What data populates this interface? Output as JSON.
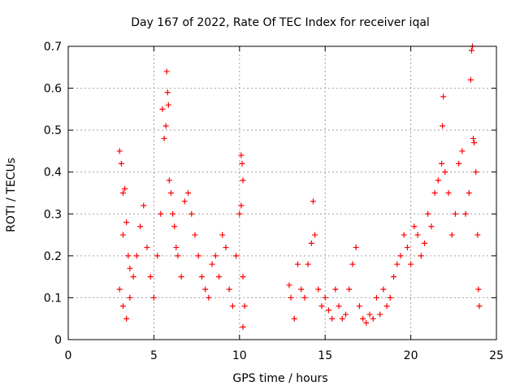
{
  "chart_data": {
    "type": "scatter",
    "title": "Day 167 of 2022, Rate Of TEC Index for receiver iqal",
    "xlabel": "GPS time / hours",
    "ylabel": "ROTI / TECUs",
    "xlim": [
      0,
      25
    ],
    "ylim": [
      0,
      0.7
    ],
    "xticks": [
      "0",
      "5",
      "10",
      "15",
      "20",
      "25"
    ],
    "yticks": [
      "0",
      "0.1",
      "0.2",
      "0.3",
      "0.4",
      "0.5",
      "0.6",
      "0.7"
    ],
    "grid": true,
    "marker": "+",
    "series": [
      {
        "color": "#ff0000",
        "points": [
          [
            3.0,
            0.45
          ],
          [
            3.1,
            0.42
          ],
          [
            3.2,
            0.35
          ],
          [
            3.3,
            0.36
          ],
          [
            3.2,
            0.25
          ],
          [
            3.4,
            0.28
          ],
          [
            3.5,
            0.2
          ],
          [
            3.6,
            0.17
          ],
          [
            3.0,
            0.12
          ],
          [
            3.2,
            0.08
          ],
          [
            3.4,
            0.05
          ],
          [
            3.6,
            0.1
          ],
          [
            3.8,
            0.15
          ],
          [
            4.0,
            0.2
          ],
          [
            4.2,
            0.27
          ],
          [
            4.4,
            0.32
          ],
          [
            4.6,
            0.22
          ],
          [
            4.8,
            0.15
          ],
          [
            5.0,
            0.1
          ],
          [
            5.2,
            0.2
          ],
          [
            5.4,
            0.3
          ],
          [
            5.5,
            0.55
          ],
          [
            5.6,
            0.48
          ],
          [
            5.7,
            0.51
          ],
          [
            5.75,
            0.64
          ],
          [
            5.8,
            0.59
          ],
          [
            5.85,
            0.56
          ],
          [
            5.9,
            0.38
          ],
          [
            6.0,
            0.35
          ],
          [
            6.1,
            0.3
          ],
          [
            6.2,
            0.27
          ],
          [
            6.3,
            0.22
          ],
          [
            6.4,
            0.2
          ],
          [
            6.6,
            0.15
          ],
          [
            6.8,
            0.33
          ],
          [
            7.0,
            0.35
          ],
          [
            7.2,
            0.3
          ],
          [
            7.4,
            0.25
          ],
          [
            7.6,
            0.2
          ],
          [
            7.8,
            0.15
          ],
          [
            8.0,
            0.12
          ],
          [
            8.2,
            0.1
          ],
          [
            8.4,
            0.18
          ],
          [
            8.6,
            0.2
          ],
          [
            8.8,
            0.15
          ],
          [
            9.0,
            0.25
          ],
          [
            9.2,
            0.22
          ],
          [
            9.4,
            0.12
          ],
          [
            9.6,
            0.08
          ],
          [
            9.8,
            0.2
          ],
          [
            10.0,
            0.3
          ],
          [
            10.1,
            0.44
          ],
          [
            10.15,
            0.42
          ],
          [
            10.2,
            0.38
          ],
          [
            10.1,
            0.32
          ],
          [
            10.2,
            0.15
          ],
          [
            10.3,
            0.08
          ],
          [
            10.2,
            0.03
          ],
          [
            12.9,
            0.13
          ],
          [
            13.0,
            0.1
          ],
          [
            13.2,
            0.05
          ],
          [
            13.4,
            0.18
          ],
          [
            13.6,
            0.12
          ],
          [
            13.8,
            0.1
          ],
          [
            14.0,
            0.18
          ],
          [
            14.2,
            0.23
          ],
          [
            14.3,
            0.33
          ],
          [
            14.4,
            0.25
          ],
          [
            14.6,
            0.12
          ],
          [
            14.8,
            0.08
          ],
          [
            15.0,
            0.1
          ],
          [
            15.2,
            0.07
          ],
          [
            15.4,
            0.05
          ],
          [
            15.6,
            0.12
          ],
          [
            15.8,
            0.08
          ],
          [
            16.0,
            0.05
          ],
          [
            16.2,
            0.06
          ],
          [
            16.4,
            0.12
          ],
          [
            16.6,
            0.18
          ],
          [
            16.8,
            0.22
          ],
          [
            17.0,
            0.08
          ],
          [
            17.2,
            0.05
          ],
          [
            17.4,
            0.04
          ],
          [
            17.6,
            0.06
          ],
          [
            17.8,
            0.05
          ],
          [
            18.0,
            0.1
          ],
          [
            18.2,
            0.06
          ],
          [
            18.4,
            0.12
          ],
          [
            18.6,
            0.08
          ],
          [
            18.8,
            0.1
          ],
          [
            19.0,
            0.15
          ],
          [
            19.2,
            0.18
          ],
          [
            19.4,
            0.2
          ],
          [
            19.6,
            0.25
          ],
          [
            19.8,
            0.22
          ],
          [
            20.0,
            0.18
          ],
          [
            20.2,
            0.27
          ],
          [
            20.4,
            0.25
          ],
          [
            20.6,
            0.2
          ],
          [
            20.8,
            0.23
          ],
          [
            21.0,
            0.3
          ],
          [
            21.2,
            0.27
          ],
          [
            21.4,
            0.35
          ],
          [
            21.6,
            0.38
          ],
          [
            21.8,
            0.42
          ],
          [
            21.85,
            0.51
          ],
          [
            21.9,
            0.58
          ],
          [
            22.0,
            0.4
          ],
          [
            22.2,
            0.35
          ],
          [
            22.4,
            0.25
          ],
          [
            22.6,
            0.3
          ],
          [
            22.8,
            0.42
          ],
          [
            23.0,
            0.45
          ],
          [
            23.2,
            0.3
          ],
          [
            23.4,
            0.35
          ],
          [
            23.5,
            0.62
          ],
          [
            23.55,
            0.69
          ],
          [
            23.6,
            0.7
          ],
          [
            23.65,
            0.48
          ],
          [
            23.7,
            0.47
          ],
          [
            23.8,
            0.4
          ],
          [
            23.9,
            0.25
          ],
          [
            23.95,
            0.12
          ],
          [
            24.0,
            0.08
          ]
        ]
      }
    ]
  }
}
